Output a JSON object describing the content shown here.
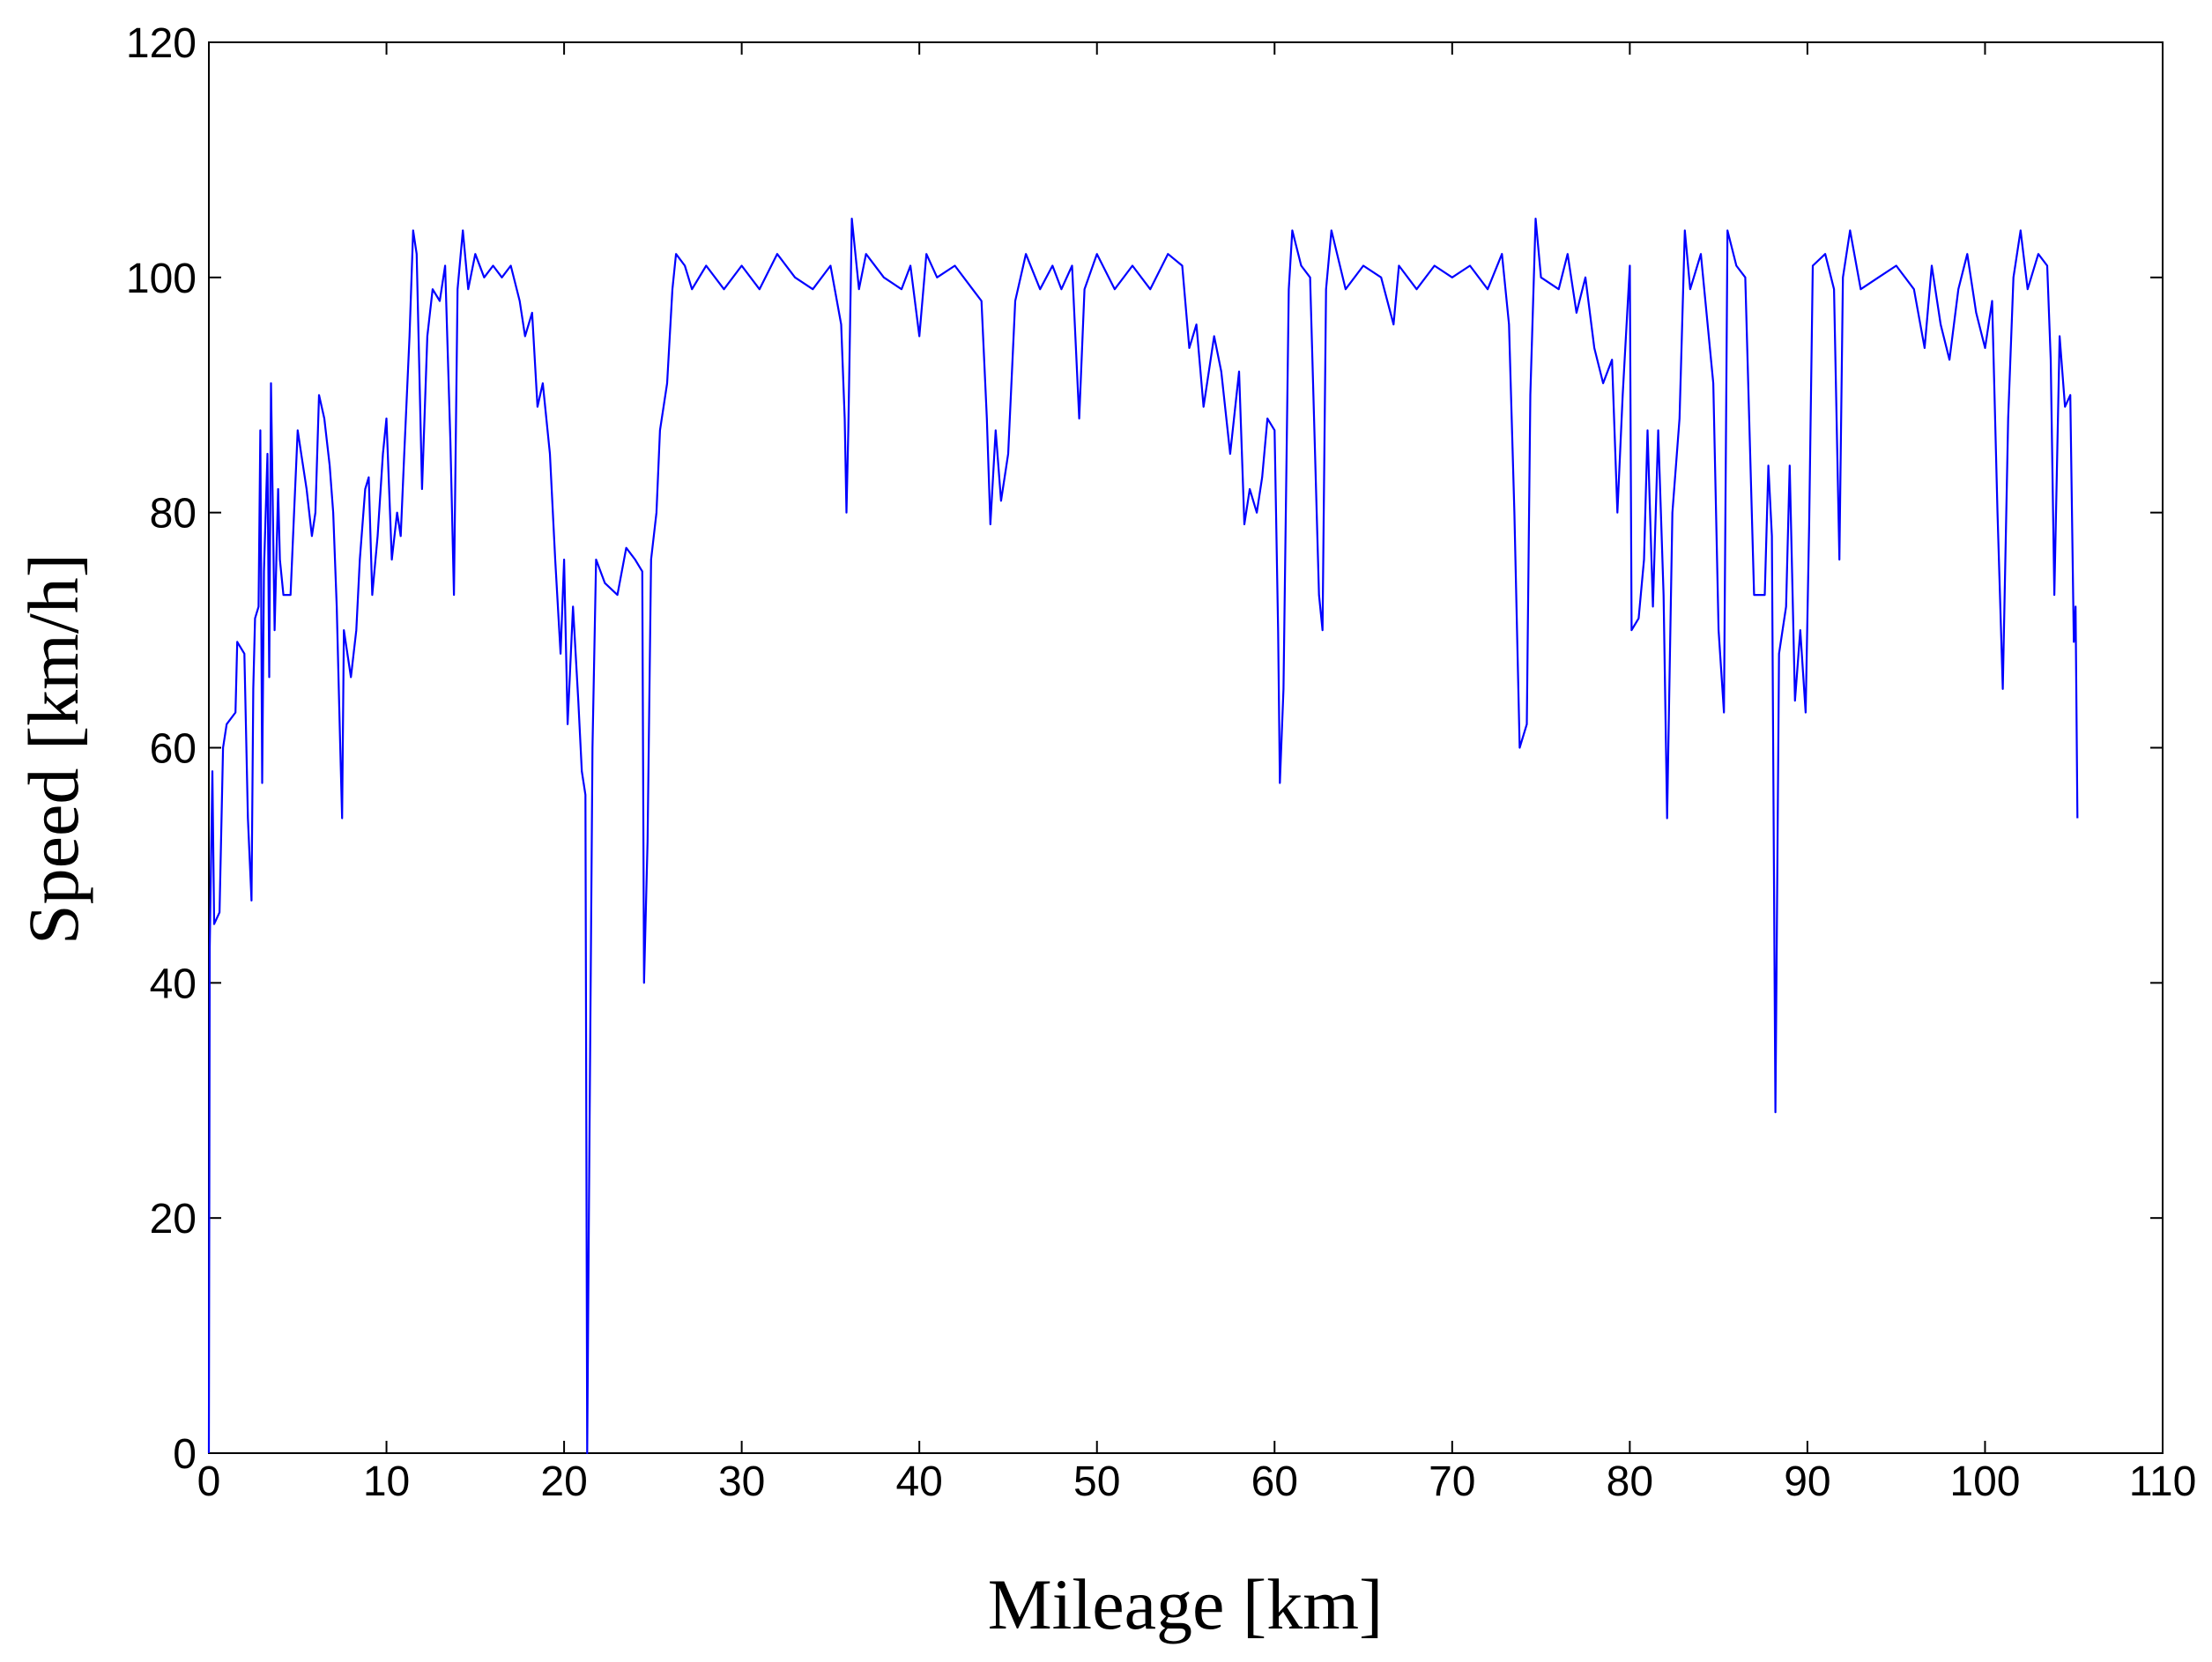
{
  "chart_data": {
    "type": "line",
    "xlabel": "Mileage [km]",
    "ylabel": "Speed [km/h]",
    "color": "#0000ff",
    "grid": false,
    "xlim": [
      0,
      110
    ],
    "xticks": [
      0,
      10,
      20,
      30,
      40,
      50,
      60,
      70,
      80,
      90,
      100,
      110
    ],
    "ylim": [
      0,
      120
    ],
    "yticks": [
      0,
      20,
      40,
      60,
      80,
      100,
      120
    ],
    "x": [
      0,
      0.05,
      0.2,
      0.3,
      0.6,
      0.8,
      1,
      1.5,
      1.6,
      2,
      2.2,
      2.4,
      2.5,
      2.6,
      2.8,
      2.9,
      3.0,
      3.1,
      3.3,
      3.4,
      3.5,
      3.7,
      3.9,
      4.0,
      4.2,
      4.6,
      4.8,
      5.0,
      5.2,
      5.5,
      5.8,
      6.0,
      6.2,
      6.5,
      6.8,
      7.0,
      7.2,
      7.4,
      7.5,
      7.6,
      8.0,
      8.3,
      8.5,
      8.8,
      9.0,
      9.2,
      9.5,
      9.8,
      10.0,
      10.3,
      10.6,
      10.8,
      11.0,
      11.3,
      11.5,
      11.7,
      12.0,
      12.3,
      12.6,
      13.0,
      13.3,
      13.6,
      13.8,
      14.0,
      14.3,
      14.6,
      15,
      15.5,
      16,
      16.5,
      17,
      17.5,
      17.8,
      18.2,
      18.5,
      18.8,
      19.2,
      19.5,
      19.8,
      20.0,
      20.2,
      20.5,
      20.8,
      21.0,
      21.2,
      21.3,
      21.4,
      21.6,
      21.8,
      22.3,
      23,
      23.5,
      24,
      24.4,
      24.5,
      24.7,
      24.9,
      25.2,
      25.4,
      25.8,
      26.1,
      26.3,
      26.8,
      27.2,
      28,
      29,
      30,
      31,
      32,
      33,
      34,
      35,
      35.6,
      35.8,
      35.9,
      36.0,
      36.2,
      36.6,
      37,
      38,
      39,
      39.5,
      40,
      40.4,
      41,
      42,
      43,
      43.5,
      43.8,
      44.0,
      44.3,
      44.6,
      45,
      45.4,
      46,
      46.8,
      47.5,
      48,
      48.6,
      49.0,
      49.3,
      50,
      51,
      52,
      53,
      54,
      54.8,
      55.2,
      55.6,
      56,
      56.3,
      56.6,
      57,
      57.5,
      58,
      58.3,
      58.6,
      59.0,
      59.3,
      59.6,
      60,
      60.2,
      60.3,
      60.5,
      60.8,
      61,
      61.5,
      62,
      62.5,
      62.7,
      62.9,
      63.2,
      64,
      65,
      66,
      66.7,
      67,
      68,
      69,
      70,
      71,
      72,
      72.8,
      73.2,
      73.5,
      73.8,
      74.2,
      74.4,
      74.7,
      75,
      76,
      76.5,
      77,
      77.5,
      78,
      78.5,
      79,
      79.3,
      79.6,
      80,
      80.1,
      80.5,
      80.8,
      81,
      81.3,
      81.6,
      81.9,
      82.1,
      82.4,
      82.8,
      83.1,
      83.4,
      84,
      84.7,
      85,
      85.3,
      85.5,
      86,
      86.5,
      87,
      87.6,
      87.8,
      88.0,
      88.2,
      88.4,
      88.8,
      89,
      89.3,
      89.6,
      89.9,
      90.1,
      90.3,
      91,
      91.5,
      91.8,
      92,
      92.4,
      93,
      94,
      95,
      96,
      96.6,
      97,
      97.5,
      98,
      98.5,
      99,
      99.5,
      100,
      100.4,
      100.7,
      101,
      101.3,
      101.6,
      102,
      102.4,
      103,
      103.5,
      103.7,
      103.9,
      104.2,
      104.5,
      104.8,
      105.0,
      105.1,
      105.2
    ],
    "values": [
      0,
      43,
      58,
      45,
      46,
      60,
      62,
      63,
      69,
      68,
      54,
      47,
      65,
      71,
      72,
      87,
      57,
      75,
      85,
      66,
      91,
      70,
      82,
      76,
      73,
      73,
      80,
      87,
      85,
      82,
      78,
      80,
      90,
      88,
      84,
      80,
      72,
      60,
      54,
      70,
      66,
      70,
      76,
      82,
      83,
      73,
      78,
      85,
      88,
      76,
      80,
      78,
      85,
      95,
      104,
      102,
      82,
      95,
      99,
      98,
      101,
      86,
      73,
      99,
      104,
      99,
      102,
      100,
      101,
      100,
      101,
      98,
      95,
      97,
      89,
      91,
      85,
      76,
      68,
      76,
      62,
      72,
      64,
      58,
      56,
      0,
      21,
      60,
      76,
      74,
      73,
      77,
      76,
      75,
      40,
      52,
      76,
      80,
      87,
      91,
      99,
      102,
      101,
      99,
      101,
      99,
      101,
      99,
      102,
      100,
      99,
      101,
      96,
      88,
      80,
      87,
      105,
      99,
      102,
      100,
      99,
      101,
      95,
      102,
      100,
      101,
      99,
      98,
      88,
      79,
      87,
      81,
      85,
      98,
      102,
      99,
      101,
      99,
      101,
      88,
      99,
      102,
      99,
      101,
      99,
      102,
      101,
      94,
      96,
      89,
      92,
      95,
      92,
      85,
      92,
      79,
      82,
      80,
      83,
      88,
      87,
      70,
      57,
      65,
      99,
      104,
      101,
      100,
      73,
      70,
      99,
      104,
      99,
      101,
      100,
      96,
      101,
      99,
      101,
      100,
      101,
      99,
      102,
      96,
      80,
      60,
      62,
      90,
      105,
      100,
      99,
      102,
      97,
      100,
      94,
      91,
      93,
      80,
      90,
      101,
      70,
      71,
      76,
      87,
      72,
      87,
      73,
      54,
      80,
      88,
      104,
      99,
      102,
      91,
      70,
      63,
      104,
      101,
      100,
      73,
      73,
      84,
      78,
      29,
      68,
      72,
      84,
      64,
      70,
      63,
      79,
      101,
      102,
      99,
      76,
      100,
      104,
      99,
      100,
      101,
      99,
      94,
      101,
      96,
      93,
      99,
      102,
      97,
      94,
      98,
      80,
      65,
      88,
      100,
      104,
      99,
      102,
      101,
      93,
      73,
      95,
      89,
      90,
      69,
      72,
      54
    ]
  }
}
